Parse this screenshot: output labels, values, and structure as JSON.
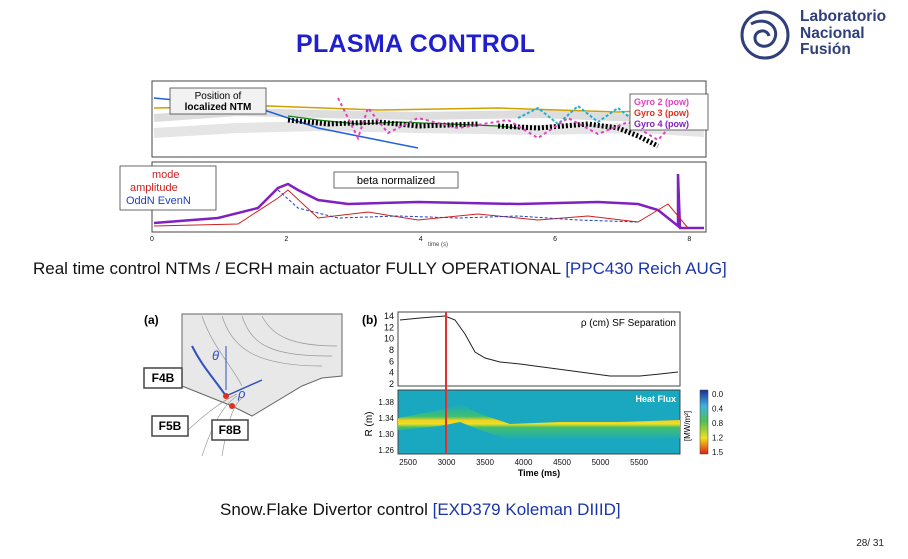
{
  "slide": {
    "title": "PLASMA CONTROL",
    "logo": {
      "line1": "Laboratorio",
      "line2": "Nacional",
      "line3": "Fusión"
    },
    "caption1": {
      "text": "Real time control NTMs / ECRH main actuator FULLY OPERATIONAL ",
      "ref": "[PPC430 Reich AUG]"
    },
    "caption2": {
      "text": "Snow.Flake Divertor  control ",
      "ref": "[EXD379 Koleman DIIID]"
    },
    "page_number": "28/ 31"
  },
  "figure1": {
    "top_label_line1": "Position of",
    "top_label_line2": "localized NTM",
    "legend": [
      "Gyro 2 (pow)",
      "Gyro 3 (pow)",
      "Gyro 4 (pow)"
    ],
    "legend_colors": [
      "#e040c0",
      "#e03020",
      "#8020c0"
    ],
    "bottom_label_line1": "mode",
    "bottom_label_line2": "amplitude",
    "bottom_label_line3": "OddN EvenN",
    "beta_label": "beta normalized",
    "xticks": [
      "0",
      "2",
      "4",
      "6",
      "8"
    ],
    "xlabel": "time (s)"
  },
  "figure2a": {
    "label": "(a)",
    "boxes": [
      "F4B",
      "F5B",
      "F8B"
    ],
    "symbols": [
      "θ",
      "ρ"
    ]
  },
  "figure2b": {
    "label": "(b)",
    "top_title": "ρ (cm) SF Separation",
    "top_yticks": [
      "14",
      "12",
      "10",
      "8",
      "6",
      "4",
      "2"
    ],
    "bottom_title": "Heat Flux",
    "ylabel": "R (m)",
    "bottom_yticks": [
      "1.38",
      "1.34",
      "1.30",
      "1.26"
    ],
    "xticks": [
      "2500",
      "3000",
      "3500",
      "4000",
      "4500",
      "5000",
      "5500"
    ],
    "xlabel": "Time (ms)",
    "colorbar_ticks": [
      "0.0",
      "0.4",
      "0.8",
      "1.2",
      "1.5"
    ],
    "colorbar_label": "[MW/m²]"
  }
}
